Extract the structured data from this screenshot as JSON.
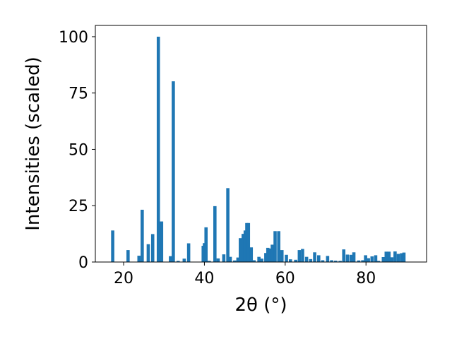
{
  "chart_data": {
    "type": "bar",
    "title": "",
    "xlabel": "2θ (°)",
    "ylabel": "Intensities (scaled)",
    "xlim": [
      13,
      95
    ],
    "ylim": [
      0,
      105
    ],
    "xticks": [
      20,
      40,
      60,
      80
    ],
    "yticks": [
      0,
      25,
      50,
      75,
      100
    ],
    "grid": false,
    "bar_color": "#1f77b4",
    "bar_width": 0.8,
    "x": [
      17.3,
      21.1,
      23.8,
      24.6,
      26.1,
      27.2,
      28.6,
      29.4,
      31.6,
      32.3,
      33.5,
      35.0,
      36.1,
      39.7,
      40.0,
      40.4,
      41.2,
      42.6,
      43.4,
      44.8,
      45.8,
      46.4,
      47.5,
      48.3,
      48.9,
      49.6,
      50.1,
      50.5,
      50.9,
      51.6,
      52.3,
      53.5,
      54.2,
      55.2,
      55.7,
      56.3,
      56.8,
      57.5,
      58.4,
      59.2,
      60.3,
      61.3,
      62.6,
      63.5,
      64.3,
      65.3,
      66.3,
      67.3,
      68.3,
      69.3,
      70.5,
      71.5,
      72.5,
      73.6,
      74.5,
      75.4,
      76.3,
      77.0,
      78.2,
      79.2,
      79.9,
      80.6,
      81.5,
      82.4,
      83.1,
      84.3,
      85.0,
      85.7,
      86.4,
      87.2,
      88.0,
      88.8,
      89.4
    ],
    "values": [
      14,
      5.3,
      2.8,
      23.2,
      7.9,
      12.4,
      100,
      18,
      2.6,
      80.2,
      0.5,
      1.5,
      8.3,
      7.2,
      8.4,
      15.4,
      0.5,
      24.8,
      1.6,
      3.4,
      32.8,
      2.3,
      0.7,
      2,
      10.6,
      12.5,
      14,
      17.3,
      17.3,
      6.5,
      0.8,
      2.3,
      1.5,
      4,
      6.3,
      6,
      7.7,
      13.7,
      13.7,
      5.3,
      3.2,
      1.2,
      1,
      5.3,
      5.8,
      2.3,
      1.3,
      4.3,
      3,
      0.8,
      2.7,
      0.8,
      0.6,
      0.5,
      5.6,
      3.3,
      3.2,
      4.3,
      0.7,
      0.8,
      3,
      1.7,
      2.5,
      3,
      0.5,
      2.2,
      4.6,
      4.6,
      2.1,
      4.7,
      3.6,
      3.9,
      4.2
    ]
  }
}
